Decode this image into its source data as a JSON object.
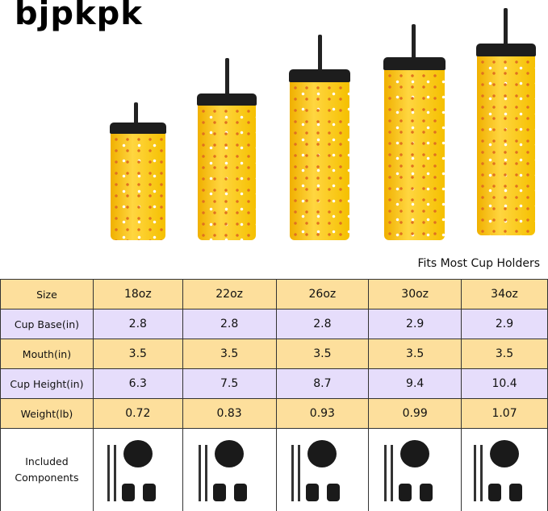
{
  "brand": {
    "logo_text": "BJPKPK"
  },
  "product": {
    "color_theme": "#f5c000",
    "sizes_shown": [
      "18oz",
      "22oz",
      "26oz",
      "30oz",
      "34oz"
    ]
  },
  "note": "Fits Most Cup Holders",
  "table": {
    "colors": {
      "orange": "#fddf9c",
      "lavender": "#e6ddfb"
    },
    "rows": [
      {
        "label": "Size",
        "values": [
          "18oz",
          "22oz",
          "26oz",
          "30oz",
          "34oz"
        ]
      },
      {
        "label": "Cup Base(in)",
        "values": [
          "2.8",
          "2.8",
          "2.8",
          "2.9",
          "2.9"
        ]
      },
      {
        "label": "Mouth(in)",
        "values": [
          "3.5",
          "3.5",
          "3.5",
          "3.5",
          "3.5"
        ]
      },
      {
        "label": "Cup Height(in)",
        "values": [
          "6.3",
          "7.5",
          "8.7",
          "9.4",
          "10.4"
        ]
      },
      {
        "label": "Weight(lb)",
        "values": [
          "0.72",
          "0.83",
          "0.93",
          "0.99",
          "1.07"
        ]
      }
    ],
    "components_label": "Included Components"
  }
}
